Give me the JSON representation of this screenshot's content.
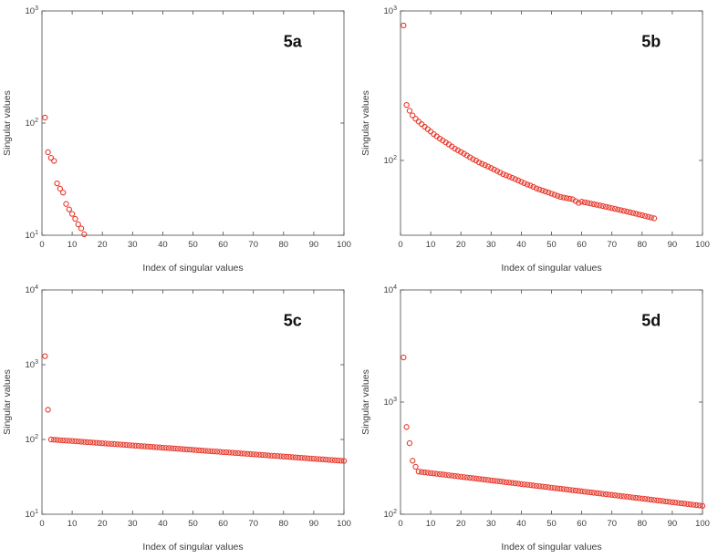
{
  "figure": {
    "background": "#ffffff",
    "marker_color": "#e8392b",
    "axis_color": "#4a4a4a",
    "tick_text_color": "#3c3c3c",
    "panel_label_color": "#111111"
  },
  "chart_data": [
    {
      "type": "scatter",
      "panel_label": "5a",
      "xlabel": "Index of singular values",
      "ylabel": "Singular values",
      "xlim": [
        0,
        100
      ],
      "xticks": [
        0,
        10,
        20,
        30,
        40,
        50,
        60,
        70,
        80,
        90,
        100
      ],
      "yscale": "log",
      "ylim": [
        10,
        1000
      ],
      "ytick_exponents": [
        1,
        2,
        3
      ],
      "x_start": 1,
      "y": [
        112,
        55,
        49,
        46,
        29,
        26,
        24,
        19,
        17,
        15.5,
        14,
        12.5,
        11.5,
        10.2
      ]
    },
    {
      "type": "scatter",
      "panel_label": "5b",
      "xlabel": "Index of singular values",
      "ylabel": "Singular values",
      "xlim": [
        0,
        100
      ],
      "xticks": [
        0,
        10,
        20,
        30,
        40,
        50,
        60,
        70,
        80,
        90,
        100
      ],
      "yscale": "log",
      "ylim": [
        31.6,
        1000
      ],
      "ytick_exponents": [
        2,
        3
      ],
      "x_start": 1,
      "y": [
        800,
        235,
        215,
        200,
        190,
        182,
        175,
        168,
        162,
        156,
        150,
        145,
        140,
        136,
        132,
        128,
        124,
        120,
        117,
        114,
        111,
        108,
        105,
        102,
        100,
        97,
        95,
        93,
        91,
        89,
        87,
        85,
        83,
        81,
        79.5,
        78,
        76.5,
        75,
        73.5,
        72,
        70.5,
        69,
        68,
        66.5,
        65,
        64,
        63,
        62,
        61,
        60,
        59,
        58,
        57,
        56.5,
        56,
        55.5,
        55,
        53.5,
        52,
        53,
        52.5,
        52,
        51.5,
        51,
        50.5,
        50,
        49.5,
        49,
        48.5,
        48,
        47.5,
        47,
        46.5,
        46,
        45.5,
        45,
        44.5,
        44,
        43.5,
        43,
        42.5,
        42,
        41.5,
        41
      ]
    },
    {
      "type": "scatter",
      "panel_label": "5c",
      "xlabel": "Index of singular values",
      "ylabel": "Singular values",
      "xlim": [
        0,
        100
      ],
      "xticks": [
        0,
        10,
        20,
        30,
        40,
        50,
        60,
        70,
        80,
        90,
        100
      ],
      "yscale": "log",
      "ylim": [
        10,
        10000
      ],
      "ytick_exponents": [
        1,
        2,
        3,
        4
      ],
      "x_start": 1,
      "y": [
        1300,
        250,
        100.0,
        99.3,
        98.6,
        98.0,
        97.3,
        96.6,
        96.0,
        95.3,
        94.7,
        94.0,
        93.4,
        92.8,
        92.1,
        91.5,
        90.9,
        90.3,
        89.7,
        89.1,
        88.5,
        87.9,
        87.3,
        86.7,
        86.1,
        85.5,
        84.9,
        84.3,
        83.8,
        83.2,
        82.6,
        82.1,
        81.5,
        81.0,
        80.4,
        79.9,
        79.3,
        78.8,
        78.3,
        77.7,
        77.2,
        76.7,
        76.2,
        75.6,
        75.1,
        74.6,
        74.1,
        73.6,
        73.1,
        72.6,
        72.1,
        71.6,
        71.1,
        70.7,
        70.2,
        69.7,
        69.2,
        68.8,
        68.3,
        67.8,
        67.4,
        66.9,
        66.5,
        66.0,
        65.6,
        65.1,
        64.7,
        64.2,
        63.8,
        63.4,
        62.9,
        62.5,
        62.1,
        61.7,
        61.2,
        60.8,
        60.4,
        60.0,
        59.6,
        59.2,
        58.8,
        58.4,
        58.0,
        57.6,
        57.2,
        56.8,
        56.4,
        56.0,
        55.7,
        55.3,
        54.9,
        54.5,
        54.2,
        53.8,
        53.4,
        53.1,
        52.7,
        52.4,
        52.0,
        51.6
      ]
    },
    {
      "type": "scatter",
      "panel_label": "5d",
      "xlabel": "Index of singular values",
      "ylabel": "Singular values",
      "xlim": [
        0,
        100
      ],
      "xticks": [
        0,
        10,
        20,
        30,
        40,
        50,
        60,
        70,
        80,
        90,
        100
      ],
      "yscale": "log",
      "ylim": [
        100,
        10000
      ],
      "ytick_exponents": [
        2,
        3,
        4
      ],
      "x_start": 1,
      "y": [
        2500,
        600,
        430,
        300,
        265,
        240.0,
        238.2,
        236.4,
        234.7,
        232.9,
        231.2,
        229.4,
        227.7,
        226.0,
        224.4,
        222.7,
        221.0,
        219.4,
        217.7,
        216.1,
        214.5,
        212.9,
        211.3,
        209.7,
        208.2,
        206.6,
        205.1,
        203.5,
        202.0,
        200.5,
        199.0,
        197.5,
        196.1,
        194.6,
        193.1,
        191.7,
        190.3,
        188.9,
        187.4,
        186.0,
        184.7,
        183.3,
        181.9,
        180.6,
        179.2,
        177.9,
        176.6,
        175.2,
        173.9,
        172.6,
        171.4,
        170.1,
        168.8,
        167.6,
        166.3,
        165.1,
        163.9,
        162.6,
        161.4,
        160.2,
        159.0,
        157.9,
        156.7,
        155.5,
        154.4,
        153.2,
        152.1,
        150.9,
        149.8,
        148.7,
        147.6,
        146.5,
        145.4,
        144.3,
        143.3,
        142.2,
        141.1,
        140.1,
        139.0,
        138.0,
        137.0,
        136.0,
        134.9,
        133.9,
        132.9,
        131.9,
        131.0,
        130.0,
        129.0,
        128.0,
        127.1,
        126.1,
        125.2,
        124.3,
        123.3,
        122.4,
        121.5,
        120.6,
        119.7,
        118.8
      ]
    }
  ]
}
